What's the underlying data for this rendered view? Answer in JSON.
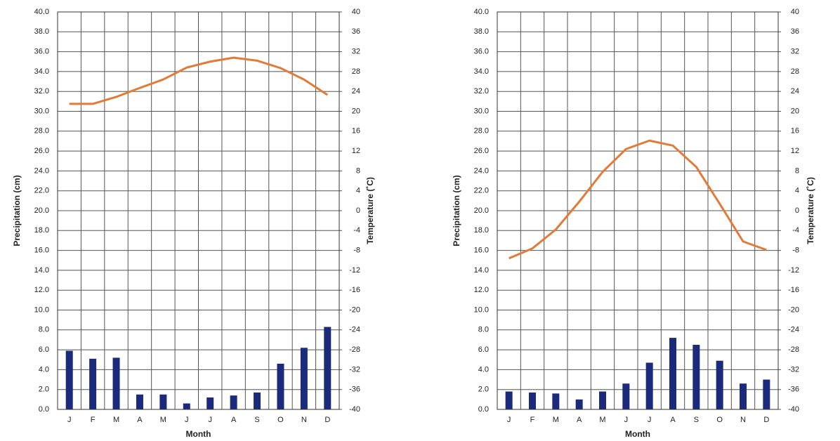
{
  "chart_data": [
    {
      "type": "bar",
      "x_label": "Month",
      "y_label": "Precipitation (cm)",
      "y2_label": "Temperature (˚C)",
      "categories": [
        "J",
        "F",
        "M",
        "A",
        "M",
        "J",
        "J",
        "A",
        "S",
        "O",
        "N",
        "D"
      ],
      "series": [
        {
          "type": "bar",
          "color": "#1b2a7a",
          "values": [
            5.9,
            5.1,
            5.2,
            1.5,
            1.5,
            0.6,
            1.2,
            1.4,
            1.7,
            4.6,
            6.2,
            8.3
          ]
        },
        {
          "type": "line",
          "axis": "y2",
          "color": "#e07b39",
          "values": [
            21.5,
            21.5,
            22.9,
            24.7,
            26.4,
            28.8,
            30.0,
            30.8,
            30.2,
            28.7,
            26.4,
            23.3
          ]
        }
      ],
      "ylim": [
        0,
        40
      ],
      "yticks": [
        {
          "value": 0,
          "label": "0.0"
        },
        {
          "value": 2,
          "label": "2.0"
        },
        {
          "value": 4,
          "label": "4.0"
        },
        {
          "value": 6,
          "label": "6.0"
        },
        {
          "value": 8,
          "label": "8.0"
        },
        {
          "value": 10,
          "label": "10.0"
        },
        {
          "value": 12,
          "label": "12.0"
        },
        {
          "value": 14,
          "label": "14.0"
        },
        {
          "value": 16,
          "label": "16.0"
        },
        {
          "value": 18,
          "label": "18.0"
        },
        {
          "value": 20,
          "label": "20.0"
        },
        {
          "value": 22,
          "label": "22.0"
        },
        {
          "value": 24,
          "label": "24.0"
        },
        {
          "value": 26,
          "label": "26.0"
        },
        {
          "value": 28,
          "label": "28.0"
        },
        {
          "value": 30,
          "label": "30.0"
        },
        {
          "value": 32,
          "label": "32.0"
        },
        {
          "value": 34,
          "label": "34.0"
        },
        {
          "value": 36,
          "label": "36.0"
        },
        {
          "value": 38,
          "label": "38.0"
        },
        {
          "value": 40,
          "label": "40.0"
        }
      ],
      "y2lim": [
        -40,
        40
      ],
      "y2ticks": [
        -40,
        -36,
        -32,
        -28,
        -24,
        -20,
        -16,
        -12,
        -8,
        -4,
        0,
        4,
        8,
        12,
        16,
        20,
        24,
        28,
        32,
        36,
        40
      ],
      "grid": true
    },
    {
      "type": "bar",
      "x_label": "Month",
      "y_label": "Precipitation (cm)",
      "y2_label": "Temperature (˚C)",
      "categories": [
        "J",
        "F",
        "M",
        "A",
        "M",
        "J",
        "J",
        "A",
        "S",
        "O",
        "N",
        "D"
      ],
      "series": [
        {
          "type": "bar",
          "color": "#1b2a7a",
          "values": [
            1.8,
            1.7,
            1.6,
            1.0,
            1.8,
            2.6,
            4.7,
            7.2,
            6.5,
            4.9,
            2.6,
            3.0
          ]
        },
        {
          "type": "line",
          "axis": "y2",
          "color": "#e07b39",
          "values": [
            -9.6,
            -7.6,
            -3.8,
            1.8,
            7.8,
            12.4,
            14.1,
            13.1,
            8.8,
            1.4,
            -6.2,
            -7.9
          ]
        }
      ],
      "ylim": [
        0,
        40
      ],
      "yticks": [
        {
          "value": 0,
          "label": "0.0"
        },
        {
          "value": 2,
          "label": "2.0"
        },
        {
          "value": 4,
          "label": "4.0"
        },
        {
          "value": 6,
          "label": "6.0"
        },
        {
          "value": 8,
          "label": "8.0"
        },
        {
          "value": 10,
          "label": "10.0"
        },
        {
          "value": 12,
          "label": "12.0"
        },
        {
          "value": 14,
          "label": "14.0"
        },
        {
          "value": 16,
          "label": "16.0"
        },
        {
          "value": 18,
          "label": "18.0"
        },
        {
          "value": 20,
          "label": "20.0"
        },
        {
          "value": 22,
          "label": "22.0"
        },
        {
          "value": 24,
          "label": "24.0"
        },
        {
          "value": 26,
          "label": "26.0"
        },
        {
          "value": 28,
          "label": "28.0"
        },
        {
          "value": 30,
          "label": "30.0"
        },
        {
          "value": 32,
          "label": "32.0"
        },
        {
          "value": 34,
          "label": "34.0"
        },
        {
          "value": 36,
          "label": "36.0"
        },
        {
          "value": 38,
          "label": "38.0"
        },
        {
          "value": 40,
          "label": "40.0"
        }
      ],
      "y2lim": [
        -40,
        40
      ],
      "y2ticks": [
        -40,
        -36,
        -32,
        -28,
        -24,
        -20,
        -16,
        -12,
        -8,
        -4,
        0,
        4,
        8,
        12,
        16,
        20,
        24,
        28,
        32,
        36,
        40
      ],
      "grid": true
    }
  ]
}
